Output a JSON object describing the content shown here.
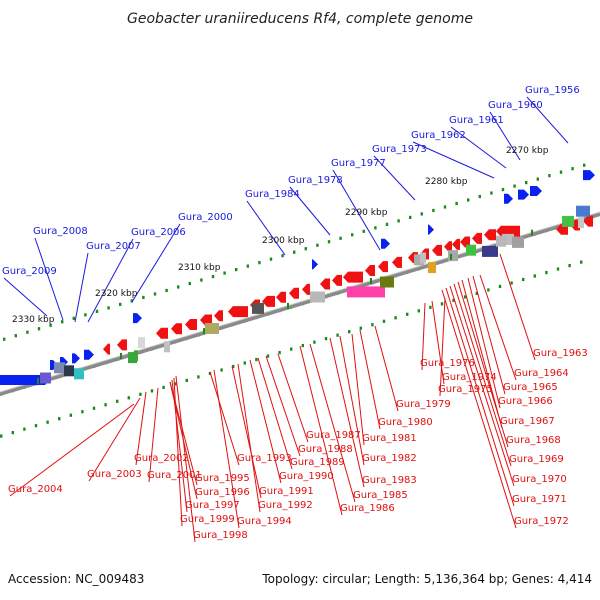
{
  "title": "Geobacter uraniireducens Rf4, complete genome",
  "footer": {
    "accession": "Accession: NC_009483",
    "topology": "Topology: circular; Length: 5,136,364 bp; Genes: 4,414"
  },
  "colors": {
    "forward_label": "#1a1adf",
    "reverse_label": "#e01010",
    "forward_gene": "#0a22f0",
    "reverse_gene": "#f01212",
    "backbone": "#8a8a8a",
    "tick": "#1a8a1a"
  },
  "kbp_ticks": [
    "2330 kbp",
    "2320 kbp",
    "2310 kbp",
    "2300 kbp",
    "2290 kbp",
    "2280 kbp",
    "2270 kbp"
  ],
  "forward_labels": [
    "Gura_2009",
    "Gura_2008",
    "Gura_2007",
    "Gura_2006",
    "Gura_2000",
    "Gura_1984",
    "Gura_1978",
    "Gura_1977",
    "Gura_1973",
    "Gura_1962",
    "Gura_1961",
    "Gura_1960",
    "Gura_1956"
  ],
  "reverse_labels": [
    "Gura_2004",
    "Gura_2003",
    "Gura_2002",
    "Gura_2001",
    "Gura_1995",
    "Gura_1996",
    "Gura_1997",
    "Gura_1999",
    "Gura_1998",
    "Gura_1993",
    "Gura_1994",
    "Gura_1991",
    "Gura_1992",
    "Gura_1990",
    "Gura_1989",
    "Gura_1988",
    "Gura_1987",
    "Gura_1986",
    "Gura_1985",
    "Gura_1983",
    "Gura_1982",
    "Gura_1981",
    "Gura_1980",
    "Gura_1979",
    "Gura_1976",
    "Gura_1974",
    "Gura_1975",
    "Gura_1963",
    "Gura_1964",
    "Gura_1965",
    "Gura_1966",
    "Gura_1967",
    "Gura_1968",
    "Gura_1969",
    "Gura_1970",
    "Gura_1971",
    "Gura_1972"
  ]
}
